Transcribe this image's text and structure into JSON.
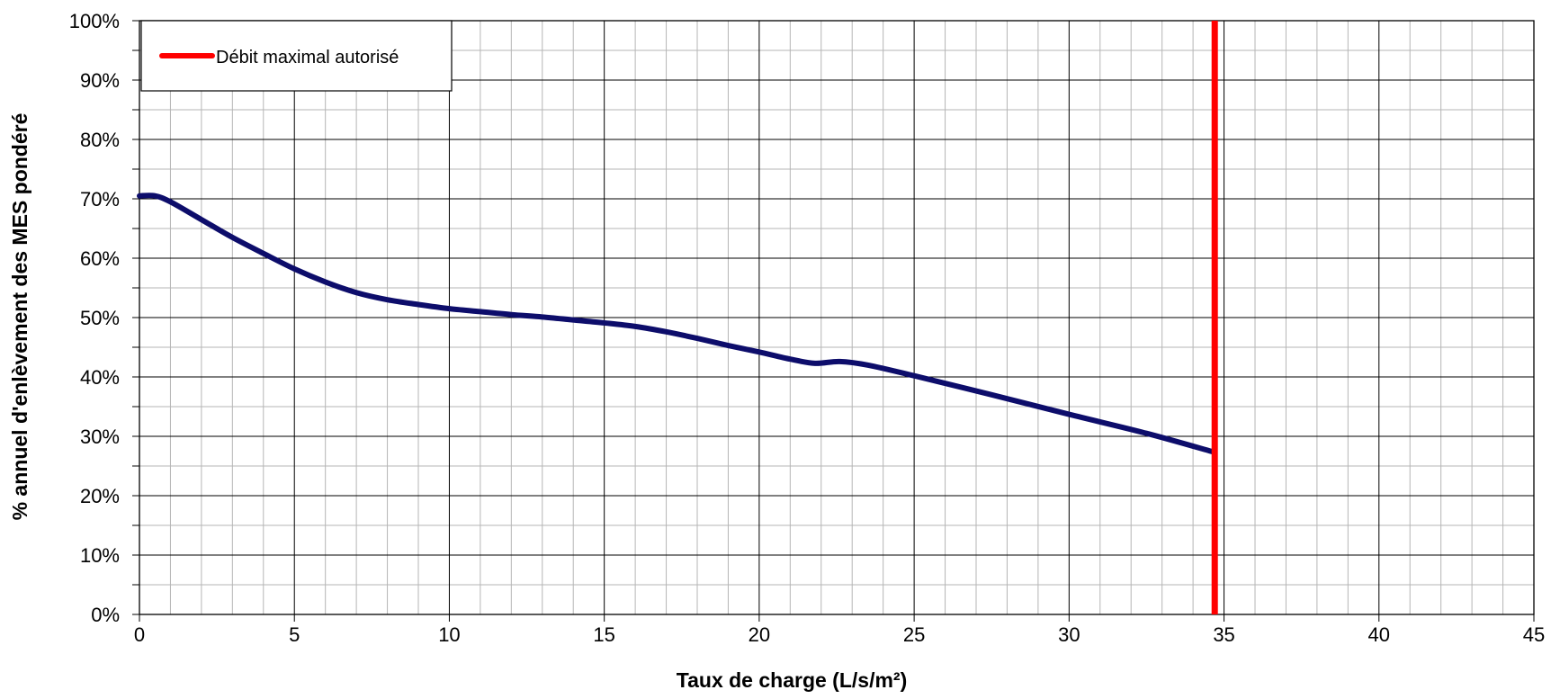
{
  "chart_data": {
    "type": "line",
    "xlabel": "Taux de charge (L/s/m²)",
    "ylabel": "% annuel d'enlèvement des MES pondéré",
    "xlim": [
      0,
      45
    ],
    "ylim": [
      0,
      100
    ],
    "x_ticks": [
      "0",
      "5",
      "10",
      "15",
      "20",
      "25",
      "30",
      "35",
      "40",
      "45"
    ],
    "y_ticks": [
      "0%",
      "10%",
      "20%",
      "30%",
      "40%",
      "50%",
      "60%",
      "70%",
      "80%",
      "90%",
      "100%"
    ],
    "grid": true,
    "legend_position": "top-left",
    "series": [
      {
        "color": "#0d0d6b",
        "points": [
          [
            0,
            70.5
          ],
          [
            0.5,
            70.5
          ],
          [
            1,
            69.5
          ],
          [
            2,
            66.5
          ],
          [
            3,
            63.5
          ],
          [
            4,
            60.8
          ],
          [
            5,
            58.2
          ],
          [
            6,
            56
          ],
          [
            7,
            54.2
          ],
          [
            8,
            53
          ],
          [
            9,
            52.2
          ],
          [
            10,
            51.5
          ],
          [
            11,
            51
          ],
          [
            12,
            50.5
          ],
          [
            13,
            50.1
          ],
          [
            14,
            49.6
          ],
          [
            15,
            49.1
          ],
          [
            16,
            48.5
          ],
          [
            17,
            47.6
          ],
          [
            18,
            46.5
          ],
          [
            19,
            45.3
          ],
          [
            20,
            44.2
          ],
          [
            21,
            43
          ],
          [
            21.8,
            42.3
          ],
          [
            22.6,
            42.6
          ],
          [
            23.5,
            42
          ],
          [
            25,
            40.2
          ],
          [
            27.5,
            37
          ],
          [
            30,
            33.7
          ],
          [
            32.5,
            30.5
          ],
          [
            34.7,
            27.3
          ]
        ]
      },
      {
        "name": "Débit maximal autorisé",
        "type": "vertical_line",
        "x": 34.7,
        "color": "#ff0000"
      }
    ]
  }
}
